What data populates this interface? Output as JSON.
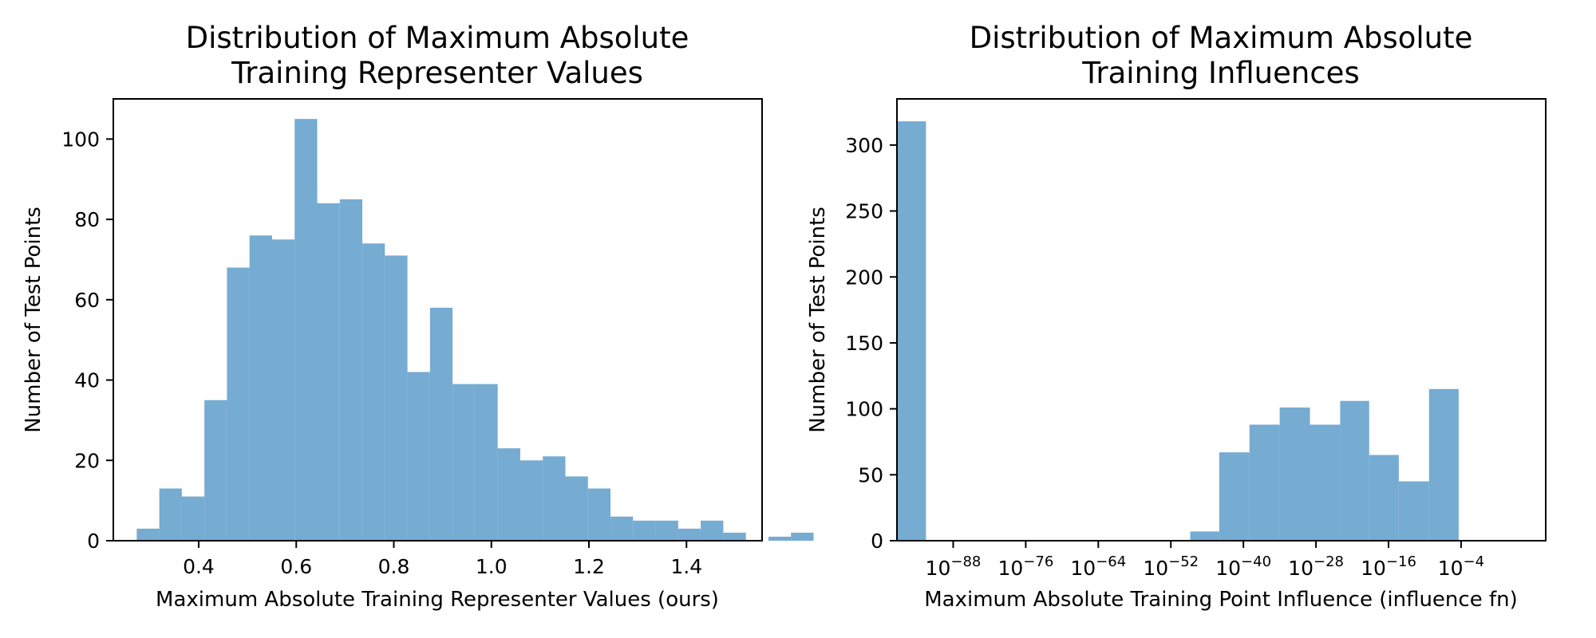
{
  "chart_data": [
    {
      "type": "bar",
      "title_lines": [
        "Distribution of Maximum Absolute",
        "Training Representer Values"
      ],
      "xlabel": "Maximum Absolute Training Representer Values (ours)",
      "ylabel": "Number of Test Points",
      "xlim": [
        0.225,
        1.555
      ],
      "ylim": [
        0,
        110
      ],
      "xticks": [
        {
          "value": 0.4,
          "label": "0.4"
        },
        {
          "value": 0.6,
          "label": "0.6"
        },
        {
          "value": 0.8,
          "label": "0.8"
        },
        {
          "value": 1.0,
          "label": "1.0"
        },
        {
          "value": 1.2,
          "label": "1.2"
        },
        {
          "value": 1.4,
          "label": "1.4"
        }
      ],
      "yticks": [
        {
          "value": 0,
          "label": "0"
        },
        {
          "value": 20,
          "label": "20"
        },
        {
          "value": 40,
          "label": "40"
        },
        {
          "value": 60,
          "label": "60"
        },
        {
          "value": 80,
          "label": "80"
        },
        {
          "value": 100,
          "label": "100"
        }
      ],
      "bin_start": 0.273,
      "bin_width": 0.04625,
      "values": [
        3,
        13,
        11,
        35,
        68,
        76,
        75,
        105,
        84,
        85,
        74,
        71,
        42,
        58,
        39,
        39,
        23,
        20,
        21,
        16,
        13,
        6,
        5,
        5,
        3,
        5,
        2,
        0,
        1,
        2
      ],
      "grid": false,
      "legend": "none",
      "color": "#76abd2"
    },
    {
      "type": "bar",
      "title_lines": [
        "Distribution of Maximum Absolute",
        "Training Influences"
      ],
      "xlabel": "Maximum Absolute Training Point Influence (influence fn)",
      "ylabel": "Number of Test Points",
      "x_scale": "log",
      "xlim_log10": [
        -97.3,
        10
      ],
      "ylim": [
        0,
        335
      ],
      "xticks": [
        {
          "exp": -88,
          "base": "10",
          "power": "−88"
        },
        {
          "exp": -76,
          "base": "10",
          "power": "−76"
        },
        {
          "exp": -64,
          "base": "10",
          "power": "−64"
        },
        {
          "exp": -52,
          "base": "10",
          "power": "−52"
        },
        {
          "exp": -40,
          "base": "10",
          "power": "−40"
        },
        {
          "exp": -28,
          "base": "10",
          "power": "−28"
        },
        {
          "exp": -16,
          "base": "10",
          "power": "−16"
        },
        {
          "exp": -4,
          "base": "10",
          "power": "−4"
        }
      ],
      "yticks": [
        {
          "value": 0,
          "label": "0"
        },
        {
          "value": 50,
          "label": "50"
        },
        {
          "value": 100,
          "label": "100"
        },
        {
          "value": 150,
          "label": "150"
        },
        {
          "value": 200,
          "label": "200"
        },
        {
          "value": 250,
          "label": "250"
        },
        {
          "value": 300,
          "label": "300"
        }
      ],
      "bins_log10": [
        {
          "from": -97.3,
          "to": -92.5,
          "count": 318
        },
        {
          "from": -48.8,
          "to": -44.0,
          "count": 7
        },
        {
          "from": -44.0,
          "to": -39.0,
          "count": 67
        },
        {
          "from": -39.0,
          "to": -34.0,
          "count": 88
        },
        {
          "from": -34.0,
          "to": -29.0,
          "count": 101
        },
        {
          "from": -29.0,
          "to": -24.0,
          "count": 88
        },
        {
          "from": -24.0,
          "to": -19.2,
          "count": 106
        },
        {
          "from": -19.2,
          "to": -14.3,
          "count": 65
        },
        {
          "from": -14.3,
          "to": -9.3,
          "count": 45
        },
        {
          "from": -9.3,
          "to": -4.4,
          "count": 115
        }
      ],
      "grid": false,
      "legend": "none",
      "color": "#76abd2"
    }
  ]
}
